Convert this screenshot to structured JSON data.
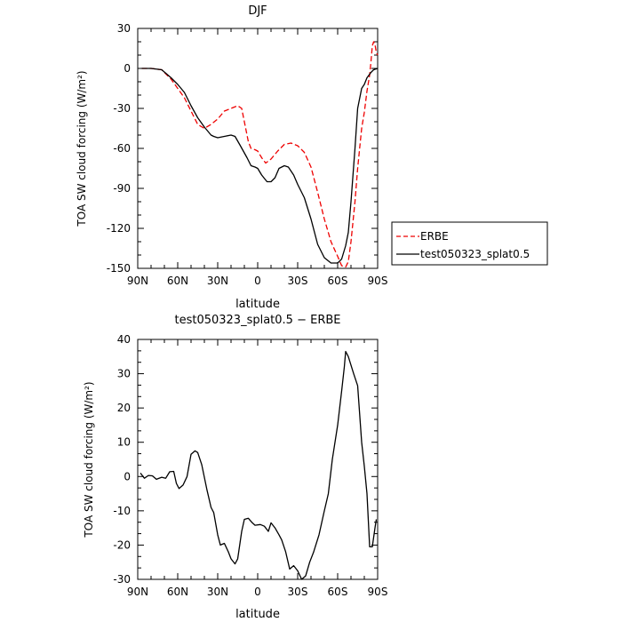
{
  "chart_data": [
    {
      "type": "line",
      "title": "DJF",
      "xlabel": "latitude",
      "ylabel": "TOA SW cloud forcing (W/m²)",
      "xlim": [
        90,
        -90
      ],
      "ylim": [
        -150,
        30
      ],
      "x_ticks": [
        90,
        60,
        30,
        0,
        -30,
        -60,
        -90
      ],
      "x_tick_labels": [
        "90N",
        "60N",
        "30N",
        "0",
        "30S",
        "60S",
        "90S"
      ],
      "y_ticks": [
        30,
        0,
        -30,
        -60,
        -90,
        -120,
        -150
      ],
      "y_tick_labels": [
        "30",
        "0",
        "-30",
        "-60",
        "-90",
        "-120",
        "-150"
      ],
      "legend_position": "right",
      "series": [
        {
          "name": "ERBE",
          "color": "#ee0000",
          "dash": "dashed",
          "points": [
            [
              87,
              0
            ],
            [
              80,
              0
            ],
            [
              72,
              -1
            ],
            [
              65,
              -8
            ],
            [
              60,
              -15
            ],
            [
              55,
              -22
            ],
            [
              50,
              -32
            ],
            [
              45,
              -42
            ],
            [
              40,
              -45
            ],
            [
              35,
              -42
            ],
            [
              30,
              -38
            ],
            [
              25,
              -32
            ],
            [
              20,
              -30
            ],
            [
              15,
              -28
            ],
            [
              12,
              -30
            ],
            [
              10,
              -40
            ],
            [
              7,
              -55
            ],
            [
              5,
              -60
            ],
            [
              2,
              -61
            ],
            [
              0,
              -62
            ],
            [
              -3,
              -67
            ],
            [
              -6,
              -71
            ],
            [
              -10,
              -68
            ],
            [
              -15,
              -62
            ],
            [
              -20,
              -57
            ],
            [
              -25,
              -56
            ],
            [
              -30,
              -58
            ],
            [
              -35,
              -63
            ],
            [
              -40,
              -74
            ],
            [
              -45,
              -93
            ],
            [
              -50,
              -113
            ],
            [
              -55,
              -130
            ],
            [
              -60,
              -141
            ],
            [
              -63,
              -148
            ],
            [
              -66,
              -149
            ],
            [
              -68,
              -145
            ],
            [
              -70,
              -130
            ],
            [
              -73,
              -100
            ],
            [
              -75,
              -75
            ],
            [
              -78,
              -45
            ],
            [
              -80,
              -33
            ],
            [
              -82,
              -17
            ],
            [
              -84,
              -5
            ],
            [
              -85,
              5
            ],
            [
              -86,
              17
            ],
            [
              -87,
              20
            ],
            [
              -88,
              18
            ],
            [
              -89,
              12
            ],
            [
              -90,
              10
            ]
          ]
        },
        {
          "name": "test050323_splat0.5",
          "color": "#000000",
          "dash": "solid",
          "points": [
            [
              87,
              0
            ],
            [
              80,
              0
            ],
            [
              72,
              -1
            ],
            [
              65,
              -7
            ],
            [
              60,
              -12
            ],
            [
              55,
              -18
            ],
            [
              50,
              -28
            ],
            [
              45,
              -37
            ],
            [
              40,
              -44
            ],
            [
              35,
              -50
            ],
            [
              33,
              -51
            ],
            [
              30,
              -52
            ],
            [
              25,
              -51
            ],
            [
              20,
              -50
            ],
            [
              17,
              -51
            ],
            [
              13,
              -58
            ],
            [
              8,
              -67
            ],
            [
              5,
              -73
            ],
            [
              2,
              -74
            ],
            [
              0,
              -75
            ],
            [
              -3,
              -80
            ],
            [
              -7,
              -85
            ],
            [
              -10,
              -85
            ],
            [
              -13,
              -82
            ],
            [
              -16,
              -75
            ],
            [
              -20,
              -73
            ],
            [
              -23,
              -74
            ],
            [
              -27,
              -80
            ],
            [
              -30,
              -87
            ],
            [
              -35,
              -97
            ],
            [
              -40,
              -113
            ],
            [
              -45,
              -132
            ],
            [
              -50,
              -142
            ],
            [
              -55,
              -146
            ],
            [
              -60,
              -146
            ],
            [
              -63,
              -143
            ],
            [
              -66,
              -133
            ],
            [
              -68,
              -123
            ],
            [
              -70,
              -100
            ],
            [
              -73,
              -60
            ],
            [
              -75,
              -30
            ],
            [
              -78,
              -15
            ],
            [
              -80,
              -12
            ],
            [
              -82,
              -7
            ],
            [
              -85,
              -3
            ],
            [
              -87,
              -1
            ],
            [
              -90,
              0
            ]
          ]
        }
      ]
    },
    {
      "type": "line",
      "title": "test050323_splat0.5 − ERBE",
      "xlabel": "latitude",
      "ylabel": "TOA SW cloud forcing (W/m²)",
      "xlim": [
        90,
        -90
      ],
      "ylim": [
        -30,
        40
      ],
      "x_ticks": [
        90,
        60,
        30,
        0,
        -30,
        -60,
        -90
      ],
      "x_tick_labels": [
        "90N",
        "60N",
        "30N",
        "0",
        "30S",
        "60S",
        "90S"
      ],
      "y_ticks": [
        40,
        30,
        20,
        10,
        0,
        -10,
        -20,
        -30
      ],
      "y_tick_labels": [
        "40",
        "30",
        "20",
        "10",
        "0",
        "-10",
        "-20",
        "-30"
      ],
      "series": [
        {
          "color": "#000000",
          "dash": "solid",
          "points": [
            [
              88,
              1
            ],
            [
              85,
              -0.5
            ],
            [
              82,
              0.3
            ],
            [
              79,
              0.2
            ],
            [
              76,
              -0.8
            ],
            [
              72,
              -0.2
            ],
            [
              69,
              -0.5
            ],
            [
              66,
              1.4
            ],
            [
              63,
              1.5
            ],
            [
              61,
              -2
            ],
            [
              59,
              -3.5
            ],
            [
              56,
              -2.5
            ],
            [
              53,
              0
            ],
            [
              50,
              6.5
            ],
            [
              47,
              7.5
            ],
            [
              45,
              7
            ],
            [
              42,
              3.5
            ],
            [
              38,
              -4
            ],
            [
              35,
              -9
            ],
            [
              33,
              -10.5
            ],
            [
              30,
              -17
            ],
            [
              28,
              -20
            ],
            [
              25,
              -19.5
            ],
            [
              22,
              -22
            ],
            [
              20,
              -24
            ],
            [
              17,
              -25.5
            ],
            [
              15,
              -24
            ],
            [
              12,
              -16
            ],
            [
              10,
              -12.5
            ],
            [
              7,
              -12.2
            ],
            [
              4,
              -13.5
            ],
            [
              2,
              -14.2
            ],
            [
              -2,
              -14
            ],
            [
              -5,
              -14.5
            ],
            [
              -8,
              -16
            ],
            [
              -10,
              -13.5
            ],
            [
              -13,
              -15
            ],
            [
              -16,
              -17
            ],
            [
              -18,
              -18.5
            ],
            [
              -21,
              -22
            ],
            [
              -24,
              -27
            ],
            [
              -27,
              -26
            ],
            [
              -30,
              -27.5
            ],
            [
              -33,
              -30
            ],
            [
              -36,
              -29
            ],
            [
              -39,
              -25
            ],
            [
              -42,
              -22
            ],
            [
              -46,
              -17
            ],
            [
              -50,
              -10
            ],
            [
              -53,
              -5
            ],
            [
              -56,
              5
            ],
            [
              -60,
              15
            ],
            [
              -63,
              25
            ],
            [
              -65,
              32
            ],
            [
              -66,
              36.5
            ],
            [
              -68,
              35
            ],
            [
              -72,
              30
            ],
            [
              -75,
              26.5
            ],
            [
              -78,
              10
            ],
            [
              -80,
              3
            ],
            [
              -82,
              -5
            ],
            [
              -84,
              -20.5
            ],
            [
              -86,
              -20.5
            ],
            [
              -88,
              -15
            ],
            [
              -89,
              -12.5
            ]
          ]
        }
      ]
    }
  ]
}
